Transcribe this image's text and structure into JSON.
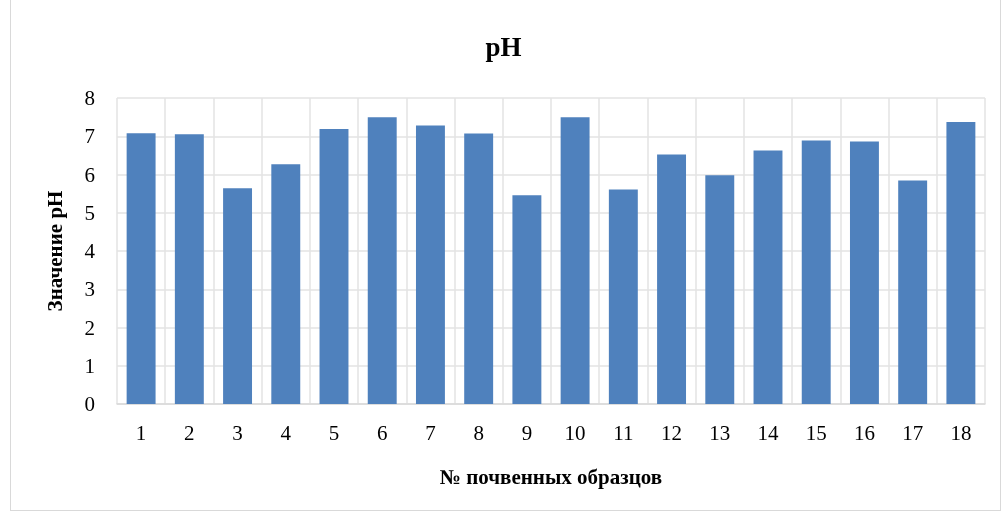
{
  "chart_data": {
    "type": "bar",
    "title": "pH",
    "xlabel": "№ почвенных образцов",
    "ylabel": "Значение pH",
    "categories": [
      "1",
      "2",
      "3",
      "4",
      "5",
      "6",
      "7",
      "8",
      "9",
      "10",
      "11",
      "12",
      "13",
      "14",
      "15",
      "16",
      "17",
      "18"
    ],
    "values": [
      7.08,
      7.05,
      5.64,
      6.27,
      7.19,
      7.5,
      7.28,
      7.07,
      5.46,
      7.5,
      5.61,
      6.52,
      5.98,
      6.63,
      6.89,
      6.86,
      5.84,
      7.37
    ],
    "color": "#4f81bd",
    "ylim": [
      0,
      8
    ],
    "yticks": [
      0,
      1,
      2,
      3,
      4,
      5,
      6,
      7,
      8
    ],
    "grid": true
  }
}
